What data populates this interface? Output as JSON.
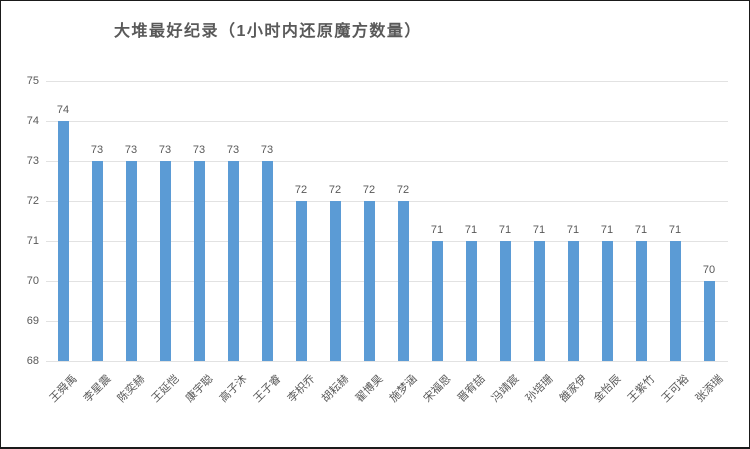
{
  "window": {
    "background_color": "#ffffff",
    "border_color": "#1a1a1a"
  },
  "chart_data": {
    "type": "bar",
    "title": "大堆最好纪录（1小时内还原魔方数量）",
    "categories": [
      "王舜禹",
      "李星震",
      "陈奕赫",
      "王延恺",
      "康宇聪",
      "高子沐",
      "王子睿",
      "李枳乔",
      "胡耘赫",
      "翟博昊",
      "施梦涵",
      "宋福恩",
      "晋宥喆",
      "冯靖宸",
      "孙培珊",
      "雒家伊",
      "金怡辰",
      "王紫竹",
      "王可裕",
      "张添瑞"
    ],
    "values": [
      74,
      73,
      73,
      73,
      73,
      73,
      73,
      72,
      72,
      72,
      72,
      71,
      71,
      71,
      71,
      71,
      71,
      71,
      71,
      70
    ],
    "data_labels": [
      74,
      73,
      73,
      73,
      73,
      73,
      73,
      72,
      72,
      72,
      72,
      71,
      71,
      71,
      71,
      71,
      71,
      71,
      71,
      70
    ],
    "xlabel": "",
    "ylabel": "",
    "ylim": [
      68,
      75
    ],
    "yticks": [
      68,
      69,
      70,
      71,
      72,
      73,
      74,
      75
    ],
    "grid": true,
    "legend": false,
    "bar_color": "#5B9BD5",
    "gridline_color": "#E2E2E2",
    "axis_text_color": "#595959",
    "title_color": "#595959"
  }
}
